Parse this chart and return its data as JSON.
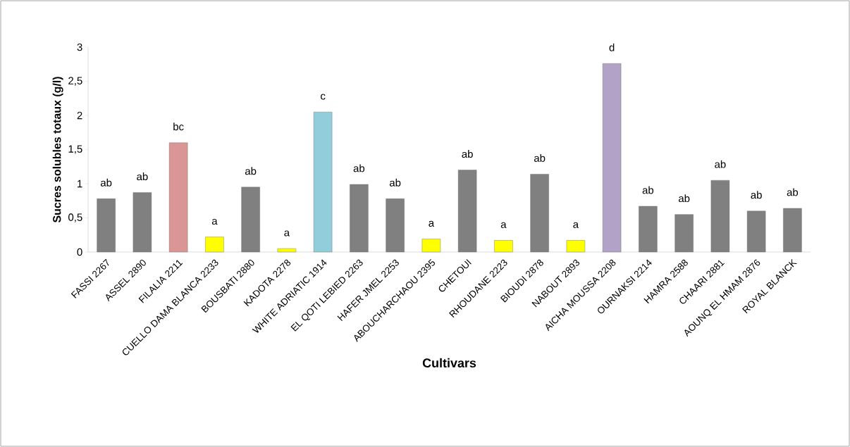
{
  "chart_data": {
    "type": "bar",
    "xlabel": "Cultivars",
    "ylabel": "Sucres solubles  totaux (g/l)",
    "categories": [
      "FASSI 2267",
      "ASSEL 2890",
      "FILALIA 2211",
      "CUELLO DAMA BLANCA 2233",
      "BOUSBATI 2880",
      "KADOTA 2278",
      "WHITE ADRIATIC 1914",
      "EL QOTI LEBIED 2263",
      "HAFER JMEL 2253",
      "ABOUCHARCHAOU 2395",
      "CHETOUI",
      "RHOUDANE 2223",
      "BIOUDI 2878",
      "NABOUT 2893",
      "AICHA MOUSSA 2208",
      "OURNAKSI 2214",
      "HAMRA 2588",
      "CHAARI 2881",
      "AOUNQ EL HMAM 2876",
      "ROYAL BLANCK"
    ],
    "values": [
      0.78,
      0.87,
      1.6,
      0.22,
      0.95,
      0.05,
      2.05,
      0.99,
      0.78,
      0.19,
      1.2,
      0.17,
      1.14,
      0.17,
      2.76,
      0.67,
      0.55,
      1.05,
      0.6,
      0.64
    ],
    "colors": [
      "#808080",
      "#808080",
      "#d99694",
      "#ffff00",
      "#808080",
      "#ffff00",
      "#92cddc",
      "#808080",
      "#808080",
      "#ffff00",
      "#808080",
      "#ffff00",
      "#808080",
      "#ffff00",
      "#b3a2c7",
      "#808080",
      "#808080",
      "#808080",
      "#808080",
      "#808080"
    ],
    "ylim": [
      0,
      3
    ],
    "yticks": [
      0,
      {
        "value": 0.5,
        "label": "0,5"
      },
      1,
      {
        "value": 1.5,
        "label": "1,5"
      },
      2,
      {
        "value": 2.5,
        "label": "2,5"
      },
      3
    ],
    "annotations": [
      {
        "text": "ab",
        "x": "FASSI 2267",
        "y": 0.78
      },
      {
        "text": "ab",
        "x": "ASSEL 2890",
        "y": 0.87
      },
      {
        "text": "bc",
        "x": "FILALIA 2211",
        "y": 1.6
      },
      {
        "text": "a",
        "x": "CUELLO DAMA BLANCA 2233",
        "y": 0.22
      },
      {
        "text": "ab",
        "x": "BOUSBATI 2880",
        "y": 0.95
      },
      {
        "text": "a",
        "x": "KADOTA 2278",
        "y": 0.05
      },
      {
        "text": "c",
        "x": "WHITE ADRIATIC 1914",
        "y": 2.05
      },
      {
        "text": "ab",
        "x": "EL QOTI LEBIED 2263",
        "y": 0.99
      },
      {
        "text": "ab",
        "x": "HAFER JMEL 2253",
        "y": 0.78
      },
      {
        "text": "a",
        "x": "ABOUCHARCHAOU 2395",
        "y": 0.19
      },
      {
        "text": "ab",
        "x": "CHETOUI",
        "y": 1.2
      },
      {
        "text": "a",
        "x": "RHOUDANE 2223",
        "y": 0.17
      },
      {
        "text": "ab",
        "x": "BIOUDI 2878",
        "y": 1.14
      },
      {
        "text": "a",
        "x": "NABOUT 2893",
        "y": 0.17
      },
      {
        "text": "d",
        "x": "AICHA MOUSSA 2208",
        "y": 2.76
      },
      {
        "text": "ab",
        "x": "OURNAKSI 2214",
        "y": 0.67
      },
      {
        "text": "ab",
        "x": "HAMRA 2588",
        "y": 0.55
      },
      {
        "text": "ab",
        "x": "CHAARI 2881",
        "y": 1.05
      },
      {
        "text": "ab",
        "x": "AOUNQ EL HMAM 2876",
        "y": 0.6
      },
      {
        "text": "ab",
        "x": "ROYAL BLANCK",
        "y": 0.64
      }
    ]
  }
}
